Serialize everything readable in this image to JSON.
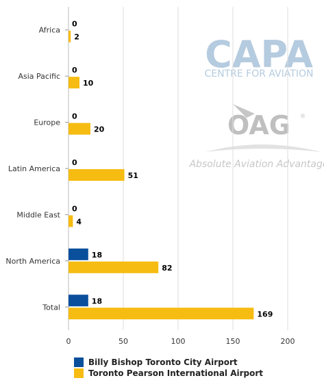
{
  "chart_data": {
    "type": "bar",
    "orientation": "horizontal",
    "categories": [
      "Africa",
      "Asia Pacific",
      "Europe",
      "Latin America",
      "Middle East",
      "North America",
      "Total"
    ],
    "series": [
      {
        "name": "Billy Bishop Toronto City Airport",
        "color": "#0a4f9c",
        "values": [
          0,
          0,
          0,
          0,
          0,
          18,
          18
        ]
      },
      {
        "name": "Toronto Pearson International Airport",
        "color": "#f7bc12",
        "values": [
          2,
          10,
          20,
          51,
          4,
          82,
          169
        ]
      }
    ],
    "xticks": [
      0,
      50,
      100,
      150,
      200
    ],
    "xlim": [
      0,
      200
    ],
    "grid": true,
    "legend_position": "bottom-left"
  },
  "watermark": {
    "capa_title": "CAPA",
    "capa_subtitle": "CENTRE FOR AVIATION",
    "oag_title": "OAG",
    "oag_reg": "®",
    "tagline": "Absolute Aviation Advantage",
    "capa_color": "#a9c3da",
    "oag_color": "#b5b5b5"
  }
}
